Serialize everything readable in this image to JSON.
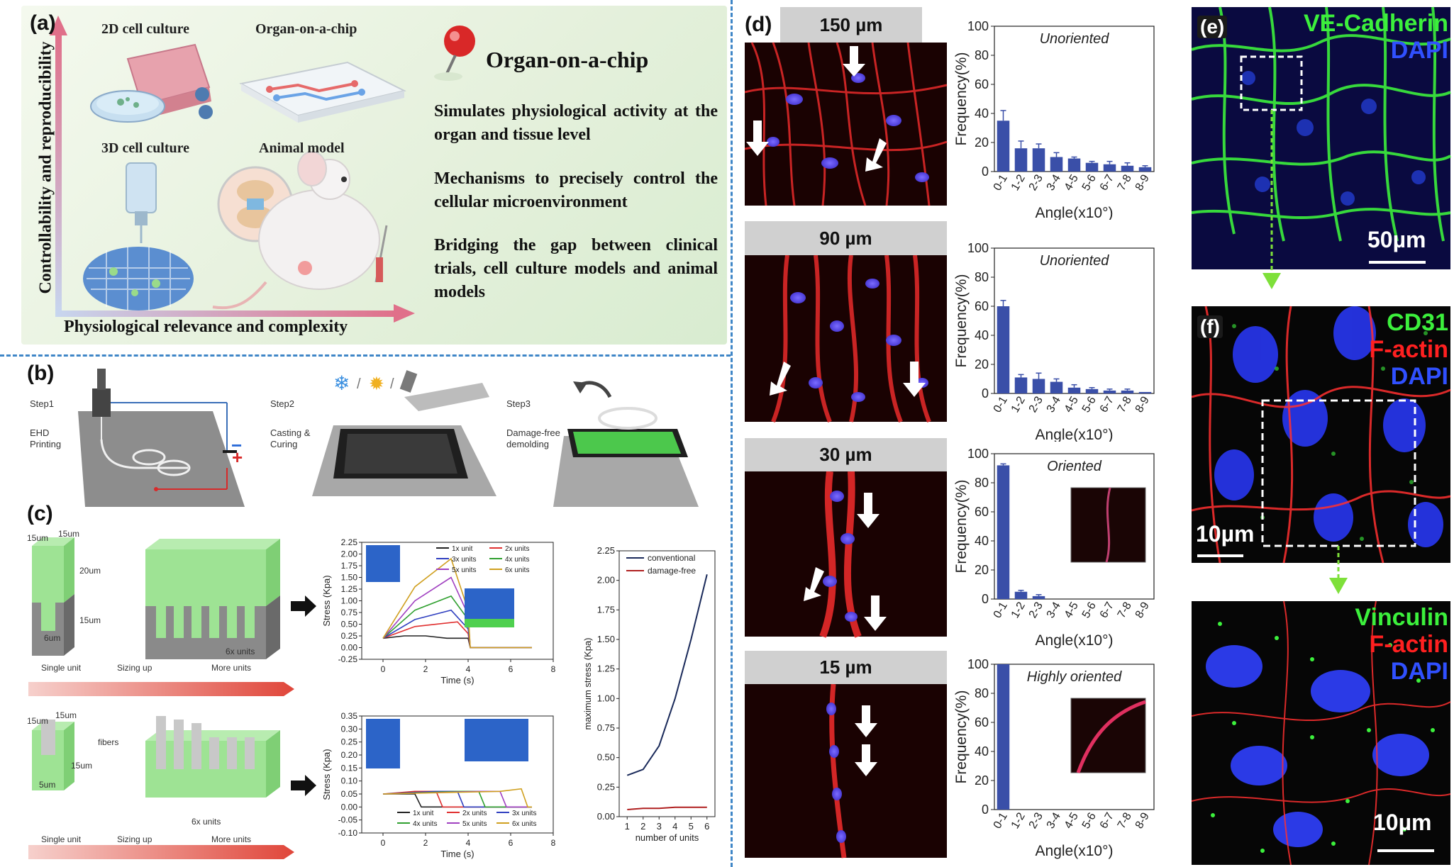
{
  "panel_labels": {
    "a": "(a)",
    "b": "(b)",
    "c": "(c)",
    "d": "(d)",
    "e": "(e)",
    "f": "(f)"
  },
  "panel_a": {
    "label_2d": "2D cell culture",
    "label_ooc": "Organ-on-a-chip",
    "label_3d": "3D cell culture",
    "label_animal": "Animal model",
    "title": "Organ-on-a-chip",
    "bullet_1": "Simulates physiological activity at the organ and tissue level",
    "bullet_2": "Mechanisms to precisely control the cellular microenvironment",
    "bullet_3": "Bridging the gap between clinical trials, cell culture models and animal models",
    "x_axis": "Physiological relevance and complexity",
    "y_axis": "Controllability and reproducibility"
  },
  "panel_b": {
    "step1": "Step1",
    "step1_desc_1": "EHD",
    "step1_desc_2": "Printing",
    "step2": "Step2",
    "step2_desc_1": "Casting &",
    "step2_desc_2": "Curing",
    "step3": "Step3",
    "step3_desc_1": "Damage-free",
    "step3_desc_2": "demolding"
  },
  "panel_c": {
    "dim_15um": "15um",
    "dim_20um": "20um",
    "dim_6um": "6um",
    "dim_5um": "5um",
    "fibers": "fibers",
    "units_6x": "6x units",
    "bar_single": "Single unit",
    "bar_sizing": "Sizing up",
    "bar_more": "More units",
    "stress_ylabel": "Stress (Kpa)",
    "time_xlabel": "Time (s)",
    "max_stress_ylabel": "maximum stress (Kpa)",
    "units_xlabel": "number of units",
    "legend_units": [
      "1x unit",
      "2x units",
      "3x units",
      "4x units",
      "5x units",
      "6x units"
    ],
    "legend_conventional": "conventional",
    "legend_damage_free": "damage-free"
  },
  "panel_d": {
    "headers": [
      "150 µm",
      "90 µm",
      "30 µm",
      "15 µm"
    ],
    "ylabel": "Frequency(%)",
    "xlabel": "Angle(x10°)"
  },
  "panel_e": {
    "stain_1": "VE-Cadherin",
    "stain_2": "DAPI",
    "scale": "50µm"
  },
  "panel_f": {
    "stain_1": "CD31",
    "stain_2": "F-actin",
    "stain_3": "DAPI",
    "scale": "10µm"
  },
  "panel_g": {
    "stain_1": "Vinculin",
    "stain_2": "F-actin",
    "stain_3": "DAPI",
    "scale": "10µm"
  },
  "colors": {
    "bar_blue": "#3a4fa8",
    "divider": "#3f86c7",
    "stain_green": "#3cf03c",
    "stain_red": "#ff2020",
    "stain_blue": "#3050ff",
    "arrow_green": "#7ee03a"
  },
  "chart_data": [
    {
      "type": "line",
      "id": "stress-1",
      "xlabel": "Time (s)",
      "ylabel": "Stress (Kpa)",
      "xlim": [
        -1,
        8
      ],
      "ylim": [
        -0.25,
        2.25
      ],
      "x_ticks": [
        "0",
        "2",
        "4",
        "6",
        "8"
      ],
      "y_ticks": [
        "-0.25",
        "0.00",
        "0.25",
        "0.50",
        "0.75",
        "1.00",
        "1.25",
        "1.50",
        "1.75",
        "2.00",
        "2.25"
      ],
      "series": [
        {
          "name": "1x unit",
          "color": "#222222",
          "x": [
            0,
            1,
            2,
            3,
            4,
            4.1,
            7
          ],
          "y": [
            0.2,
            0.25,
            0.25,
            0.2,
            0.2,
            0.0,
            0.0
          ]
        },
        {
          "name": "2x units",
          "color": "#e03030",
          "x": [
            0,
            1.5,
            3.5,
            4,
            4.1,
            7
          ],
          "y": [
            0.2,
            0.45,
            0.55,
            0.3,
            0.0,
            0.0
          ]
        },
        {
          "name": "3x units",
          "color": "#3040c0",
          "x": [
            0,
            1.5,
            3.2,
            4,
            4.1,
            7
          ],
          "y": [
            0.2,
            0.6,
            0.8,
            0.4,
            0.0,
            0.0
          ]
        },
        {
          "name": "4x units",
          "color": "#30a030",
          "x": [
            0,
            1.5,
            3.2,
            4,
            4.1,
            7
          ],
          "y": [
            0.2,
            0.8,
            1.1,
            0.6,
            0.0,
            0.0
          ]
        },
        {
          "name": "5x units",
          "color": "#a040c0",
          "x": [
            0,
            1.5,
            3.2,
            4,
            4.1,
            7
          ],
          "y": [
            0.2,
            1.0,
            1.5,
            0.7,
            0.0,
            0.0
          ]
        },
        {
          "name": "6x units",
          "color": "#d0a020",
          "x": [
            0,
            1.5,
            3.2,
            4,
            4.1,
            7
          ],
          "y": [
            0.2,
            1.3,
            1.9,
            0.8,
            0.0,
            0.0
          ]
        }
      ]
    },
    {
      "type": "line",
      "id": "stress-2",
      "xlabel": "Time (s)",
      "ylabel": "Stress (Kpa)",
      "xlim": [
        -1,
        8
      ],
      "ylim": [
        -0.1,
        0.35
      ],
      "x_ticks": [
        "0",
        "2",
        "4",
        "6",
        "8"
      ],
      "y_ticks": [
        "-0.10",
        "-0.05",
        "0.00",
        "0.05",
        "0.10",
        "0.15",
        "0.20",
        "0.25",
        "0.30",
        "0.35"
      ],
      "series": [
        {
          "name": "1x unit",
          "color": "#222222",
          "x": [
            0,
            1.5,
            1.8,
            2.5,
            7
          ],
          "y": [
            0.05,
            0.05,
            0.0,
            0.0,
            0.0
          ]
        },
        {
          "name": "2x units",
          "color": "#e03030",
          "x": [
            0,
            1.5,
            2.5,
            2.8,
            7
          ],
          "y": [
            0.05,
            0.06,
            0.06,
            0.0,
            0.0
          ]
        },
        {
          "name": "3x units",
          "color": "#3040c0",
          "x": [
            0,
            2.5,
            3.5,
            3.8,
            7
          ],
          "y": [
            0.05,
            0.06,
            0.06,
            0.0,
            0.0
          ]
        },
        {
          "name": "4x units",
          "color": "#30a030",
          "x": [
            0,
            3.5,
            4.5,
            4.8,
            7
          ],
          "y": [
            0.05,
            0.06,
            0.06,
            0.0,
            0.0
          ]
        },
        {
          "name": "5x units",
          "color": "#a040c0",
          "x": [
            0,
            4.5,
            5.5,
            5.8,
            7
          ],
          "y": [
            0.05,
            0.06,
            0.06,
            0.0,
            0.0
          ]
        },
        {
          "name": "6x units",
          "color": "#d0a020",
          "x": [
            0,
            5.5,
            6.5,
            6.8,
            7
          ],
          "y": [
            0.05,
            0.06,
            0.07,
            0.0,
            0.0
          ]
        }
      ]
    },
    {
      "type": "line",
      "id": "max-stress",
      "xlabel": "number of units",
      "ylabel": "maximum stress (Kpa)",
      "xlim": [
        0.5,
        6.5
      ],
      "ylim": [
        0,
        2.25
      ],
      "x_ticks": [
        "1",
        "2",
        "3",
        "4",
        "5",
        "6"
      ],
      "y_ticks": [
        "0.00",
        "0.25",
        "0.50",
        "0.75",
        "1.00",
        "1.25",
        "1.50",
        "1.75",
        "2.00",
        "2.25"
      ],
      "series": [
        {
          "name": "conventional",
          "color": "#1a2a5a",
          "x": [
            1,
            2,
            3,
            4,
            5,
            6
          ],
          "y": [
            0.35,
            0.4,
            0.6,
            1.0,
            1.5,
            2.05
          ]
        },
        {
          "name": "damage-free",
          "color": "#b02020",
          "x": [
            1,
            2,
            3,
            4,
            5,
            6
          ],
          "y": [
            0.06,
            0.07,
            0.07,
            0.08,
            0.08,
            0.08
          ]
        }
      ]
    },
    {
      "type": "bar",
      "id": "freq-150",
      "annotation": "Unoriented",
      "xlabel": "Angle(x10°)",
      "ylabel": "Frequency(%)",
      "ylim": [
        0,
        100
      ],
      "y_ticks": [
        "0",
        "20",
        "40",
        "60",
        "80",
        "100"
      ],
      "categories": [
        "0-1",
        "1-2",
        "2-3",
        "3-4",
        "4-5",
        "5-6",
        "6-7",
        "7-8",
        "8-9"
      ],
      "values": [
        35,
        16,
        16,
        10,
        9,
        6,
        5,
        4,
        3
      ],
      "errors": [
        7,
        5,
        3,
        3,
        1,
        1,
        2,
        2,
        1
      ]
    },
    {
      "type": "bar",
      "id": "freq-90",
      "annotation": "Unoriented",
      "xlabel": "Angle(x10°)",
      "ylabel": "Frequency(%)",
      "ylim": [
        0,
        100
      ],
      "y_ticks": [
        "0",
        "20",
        "40",
        "60",
        "80",
        "100"
      ],
      "categories": [
        "0-1",
        "1-2",
        "2-3",
        "3-4",
        "4-5",
        "5-6",
        "6-7",
        "7-8",
        "8-9"
      ],
      "values": [
        60,
        11,
        10,
        8,
        4,
        3,
        2,
        2,
        1
      ],
      "errors": [
        4,
        2,
        4,
        2,
        2,
        1,
        1,
        1,
        0
      ]
    },
    {
      "type": "bar",
      "id": "freq-30",
      "annotation": "Oriented",
      "xlabel": "Angle(x10°)",
      "ylabel": "Frequency(%)",
      "ylim": [
        0,
        100
      ],
      "y_ticks": [
        "0",
        "20",
        "40",
        "60",
        "80",
        "100"
      ],
      "categories": [
        "0-1",
        "1-2",
        "2-3",
        "3-4",
        "4-5",
        "5-6",
        "6-7",
        "7-8",
        "8-9"
      ],
      "values": [
        92,
        5,
        2,
        0,
        0,
        0,
        0,
        0,
        0
      ],
      "errors": [
        1,
        1,
        1,
        0,
        0,
        0,
        0,
        0,
        0
      ]
    },
    {
      "type": "bar",
      "id": "freq-15",
      "annotation": "Highly oriented",
      "xlabel": "Angle(x10°)",
      "ylabel": "Frequency(%)",
      "ylim": [
        0,
        100
      ],
      "y_ticks": [
        "0",
        "20",
        "40",
        "60",
        "80",
        "100"
      ],
      "categories": [
        "0-1",
        "1-2",
        "2-3",
        "3-4",
        "4-5",
        "5-6",
        "6-7",
        "7-8",
        "8-9"
      ],
      "values": [
        100,
        0,
        0,
        0,
        0,
        0,
        0,
        0,
        0
      ],
      "errors": [
        0,
        0,
        0,
        0,
        0,
        0,
        0,
        0,
        0
      ]
    }
  ]
}
